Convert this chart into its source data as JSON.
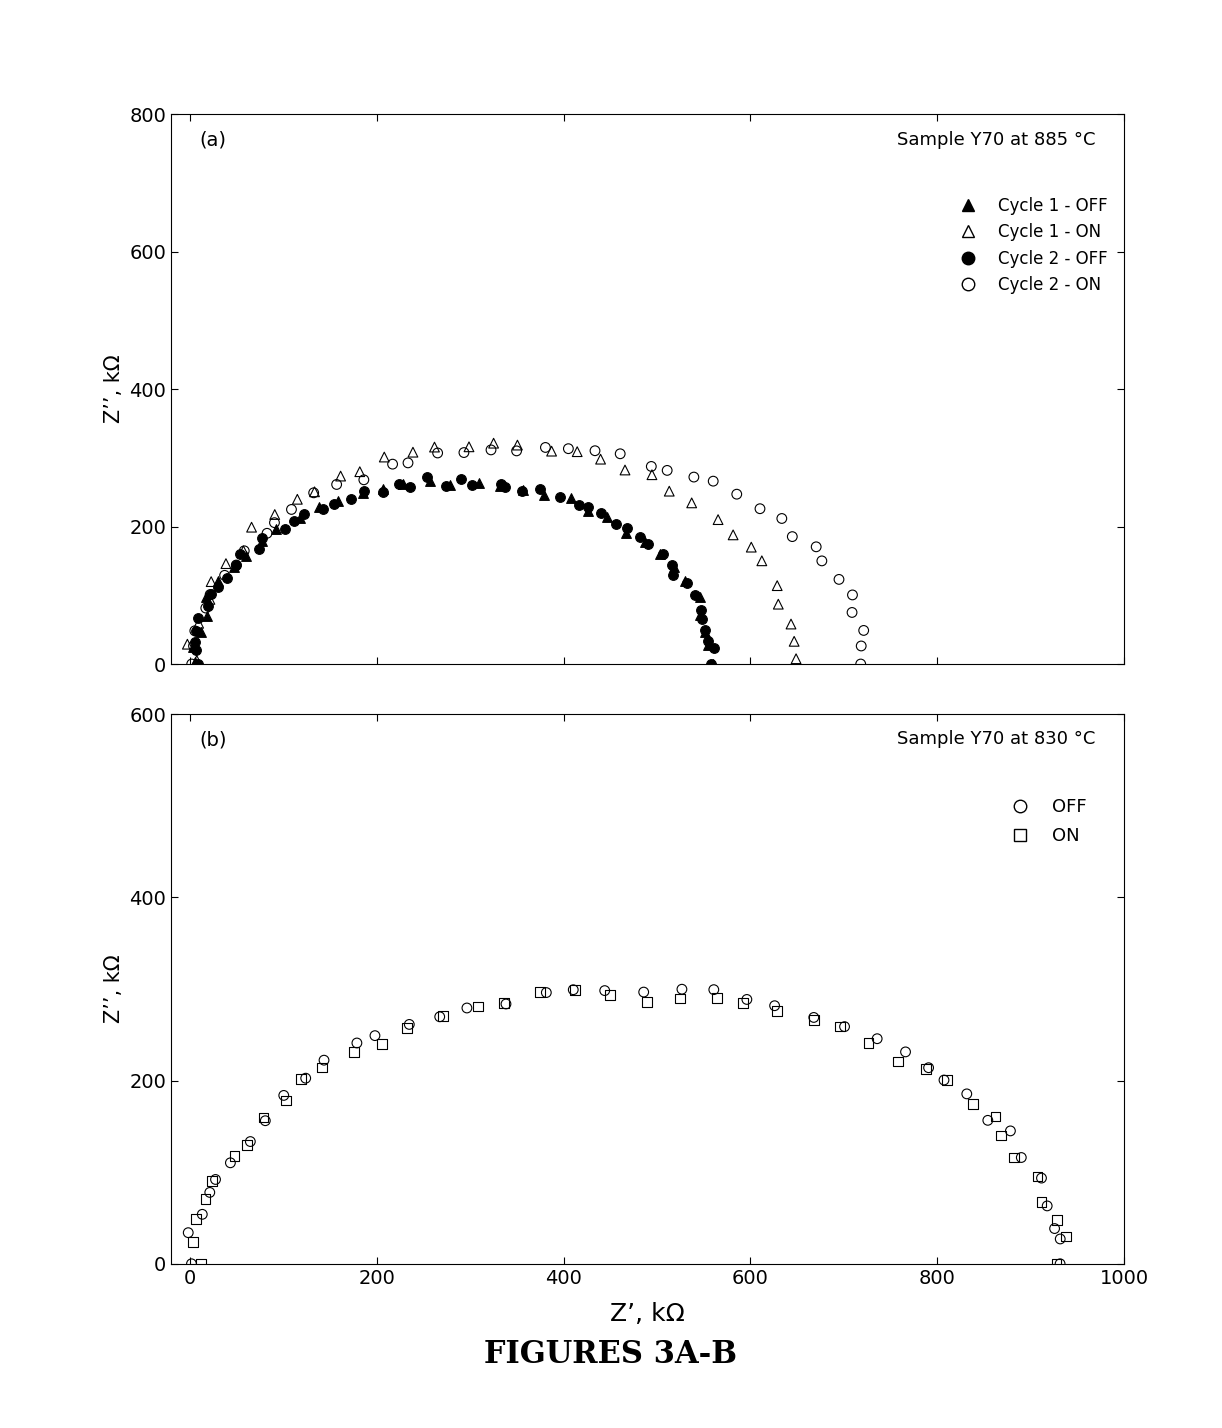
{
  "title": "FIGURES 3A-B",
  "title_fontsize": 22,
  "panel_a_label": "(a)",
  "panel_a_annotation": "Sample Y70 at 885 °C",
  "panel_a_ylim": [
    0,
    800
  ],
  "panel_a_yticks": [
    0,
    200,
    400,
    600,
    800
  ],
  "panel_a_xlim": [
    -20,
    1000
  ],
  "panel_a_xticks": [
    0,
    200,
    400,
    600,
    800,
    1000
  ],
  "panel_b_label": "(b)",
  "panel_b_annotation": "Sample Y70 at 830 °C",
  "panel_b_ylim": [
    0,
    600
  ],
  "panel_b_yticks": [
    0,
    200,
    400,
    600
  ],
  "panel_b_xlim": [
    -20,
    1000
  ],
  "panel_b_xticks": [
    0,
    200,
    400,
    600,
    800,
    1000
  ],
  "xlabel": "Z’, kΩ",
  "ylabel_a": "Z’’, kΩ",
  "ylabel_b": "Z’’, kΩ",
  "background_color": "#ffffff"
}
